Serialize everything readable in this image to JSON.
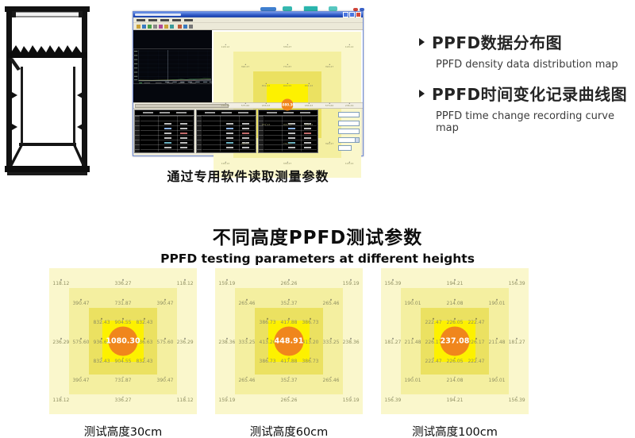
{
  "top": {
    "software": {
      "caption": "通过专用软件读取测量参数"
    },
    "bullets": [
      {
        "zh": "PPFD数据分布图",
        "en": "PPFD density data distribution map"
      },
      {
        "zh": "PPFD时间变化记录曲线图",
        "en": "PPFD time change recording curve map"
      }
    ]
  },
  "bottom": {
    "title_zh": "不同高度PPFD测试参数",
    "title_en": "PPFD testing parameters at different heights"
  },
  "colors": {
    "heat_level1": "#faf7cc",
    "heat_level2": "#f4efa0",
    "heat_level3": "#ebe161",
    "heat_level4": "#fdf100",
    "heat_center": "#f0861c",
    "titlebar_blue": "#2a52c0"
  },
  "chart_data": [
    {
      "type": "heatmap",
      "title": "测试高度30cm",
      "center_value": "1080.30",
      "rings": [
        [
          "118.12",
          "336.27"
        ],
        [
          "390.47",
          "731.87"
        ],
        [
          "832.43",
          "904.55"
        ]
      ],
      "middle_row": [
        "236.29",
        "575.60",
        "936.63"
      ]
    },
    {
      "type": "heatmap",
      "title": "测试高度60cm",
      "center_value": "448.91",
      "rings": [
        [
          "159.19",
          "265.26"
        ],
        [
          "265.46",
          "352.37"
        ],
        [
          "386.73",
          "417.88"
        ]
      ],
      "middle_row": [
        "238.36",
        "333.25",
        "413.20"
      ]
    },
    {
      "type": "heatmap",
      "title": "测试高度100cm",
      "center_value": "237.08",
      "rings": [
        [
          "156.39",
          "194.21"
        ],
        [
          "190.01",
          "214.08"
        ],
        [
          "222.47",
          "226.05"
        ]
      ],
      "middle_row": [
        "181.27",
        "211.48",
        "226.17"
      ]
    }
  ]
}
